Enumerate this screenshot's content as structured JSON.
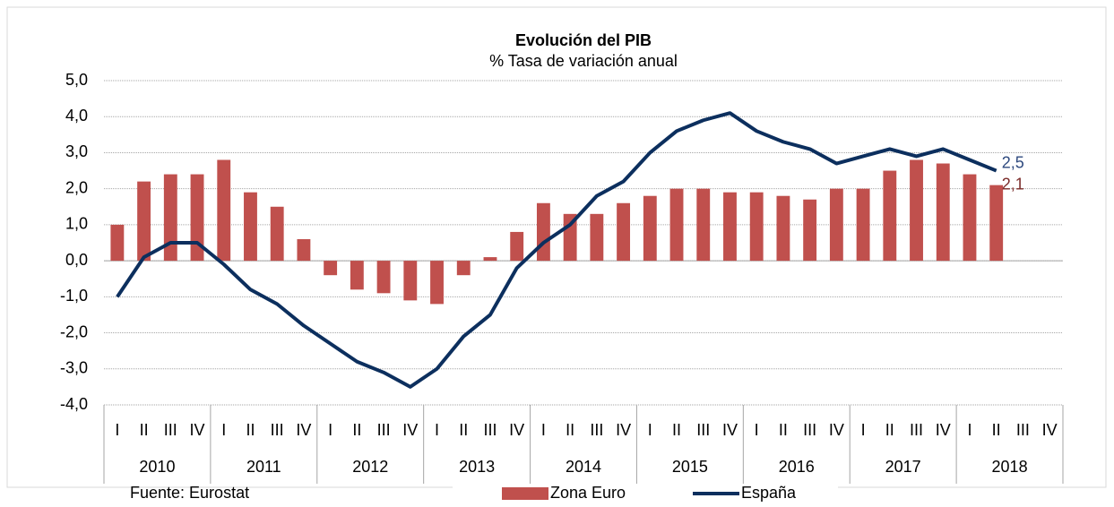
{
  "chart_data": {
    "type": "bar_line",
    "title": "Evolución del PIB",
    "subtitle": "% Tasa de variación anual",
    "source": "Fuente: Eurostat",
    "categories": [
      "I",
      "II",
      "III",
      "IV",
      "I",
      "II",
      "III",
      "IV",
      "I",
      "II",
      "III",
      "IV",
      "I",
      "II",
      "III",
      "IV",
      "I",
      "II",
      "III",
      "IV",
      "I",
      "II",
      "III",
      "IV",
      "I",
      "II",
      "III",
      "IV",
      "I",
      "II",
      "III",
      "IV",
      "I",
      "II",
      "III",
      "IV"
    ],
    "years": [
      "2010",
      "2011",
      "2012",
      "2013",
      "2014",
      "2015",
      "2016",
      "2017",
      "2018"
    ],
    "series": [
      {
        "name": "Zona Euro",
        "color": "#c0504d",
        "kind": "bar",
        "values": [
          1.0,
          2.2,
          2.4,
          2.4,
          2.8,
          1.9,
          1.5,
          0.6,
          -0.4,
          -0.8,
          -0.9,
          -1.1,
          -1.2,
          -0.4,
          0.1,
          0.8,
          1.6,
          1.3,
          1.3,
          1.6,
          1.8,
          2.0,
          2.0,
          1.9,
          1.9,
          1.8,
          1.7,
          2.0,
          2.0,
          2.5,
          2.8,
          2.7,
          2.4,
          2.1,
          null,
          null
        ],
        "value_labels": [
          null,
          null,
          null,
          null,
          null,
          null,
          null,
          null,
          null,
          null,
          null,
          null,
          null,
          null,
          null,
          null,
          null,
          null,
          null,
          null,
          null,
          null,
          null,
          null,
          null,
          null,
          null,
          null,
          null,
          null,
          null,
          null,
          null,
          "2,1",
          null,
          null
        ]
      },
      {
        "name": "España",
        "color": "#0c2f5e",
        "kind": "line",
        "values": [
          -1.0,
          0.1,
          0.5,
          0.5,
          -0.1,
          -0.8,
          -1.2,
          -1.8,
          -2.3,
          -2.8,
          -3.1,
          -3.5,
          -3.0,
          -2.1,
          -1.5,
          -0.2,
          0.5,
          1.0,
          1.8,
          2.2,
          3.0,
          3.6,
          3.9,
          4.1,
          3.6,
          3.3,
          3.1,
          2.7,
          2.9,
          3.1,
          2.9,
          3.1,
          2.8,
          2.5,
          null,
          null
        ],
        "value_labels": [
          null,
          null,
          null,
          null,
          null,
          null,
          null,
          null,
          null,
          null,
          null,
          null,
          null,
          null,
          null,
          null,
          null,
          null,
          null,
          null,
          null,
          null,
          null,
          null,
          null,
          null,
          null,
          null,
          null,
          null,
          null,
          null,
          null,
          "2,5",
          null,
          null
        ]
      }
    ],
    "ylim": [
      -4,
      5
    ],
    "yticks": [
      {
        "value": -4,
        "label": "-4,0"
      },
      {
        "value": -3,
        "label": "-3,0"
      },
      {
        "value": -2,
        "label": "-2,0"
      },
      {
        "value": -1,
        "label": "-1,0"
      },
      {
        "value": 0,
        "label": "0,0"
      },
      {
        "value": 1,
        "label": "1,0"
      },
      {
        "value": 2,
        "label": "2,0"
      },
      {
        "value": 3,
        "label": "3,0"
      },
      {
        "value": 4,
        "label": "4,0"
      },
      {
        "value": 5,
        "label": "5,0"
      }
    ],
    "grid": true
  }
}
